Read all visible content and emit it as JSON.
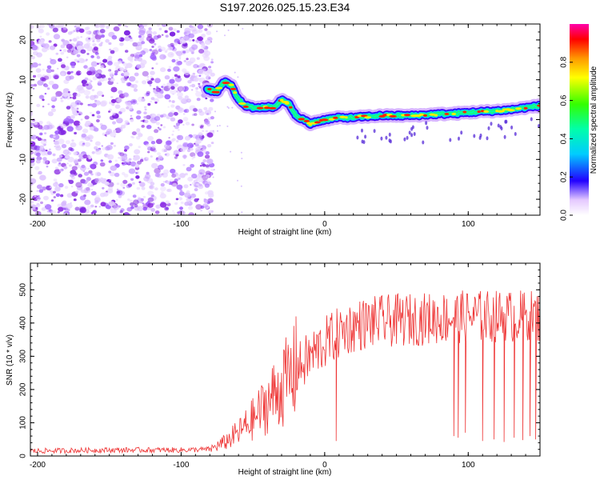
{
  "title": "S197.2026.025.15.23.E34",
  "colors": {
    "snr_line": "#ee3333",
    "scatter": "#8a2be2",
    "frame": "#000000"
  },
  "chart_data": [
    {
      "type": "heatmap",
      "name": "spectrogram",
      "xlabel": "Height of straight line (km)",
      "ylabel": "Frequency (Hz)",
      "xlim": [
        -205,
        150
      ],
      "ylim": [
        -24,
        24
      ],
      "xticks": [
        -200,
        -100,
        0,
        100
      ],
      "xtick_labels": [
        "-200",
        "-100",
        "0",
        "100"
      ],
      "yticks": [
        -20,
        -10,
        0,
        10,
        20
      ],
      "ytick_labels": [
        "-20",
        "-10",
        "0",
        "10",
        "20"
      ],
      "noise_region_x": [
        -205,
        -78
      ],
      "ridge": {
        "x": [
          -82,
          -75,
          -70,
          -65,
          -60,
          -55,
          -50,
          -45,
          -40,
          -35,
          -30,
          -25,
          -20,
          -15,
          -10,
          -5,
          0,
          10,
          20,
          30,
          40,
          50,
          60,
          70,
          80,
          90,
          100,
          110,
          120,
          130,
          140,
          150
        ],
        "y": [
          7.5,
          7,
          9.5,
          8.5,
          5,
          3.5,
          3,
          3,
          3.2,
          3,
          5,
          4,
          1,
          0,
          -1,
          -0.5,
          0,
          0.5,
          0.5,
          0.8,
          1,
          1,
          1,
          1.2,
          1.4,
          1.5,
          1.8,
          2,
          2.2,
          2.5,
          3,
          3.5
        ]
      },
      "colorbar": {
        "label": "Normalized spectral amplitude",
        "range": [
          0,
          1
        ],
        "ticks": [
          0.0,
          0.2,
          0.4,
          0.6,
          0.8
        ],
        "tick_labels": [
          "0.0",
          "0.2",
          "0.4",
          "0.6",
          "0.8"
        ]
      }
    },
    {
      "type": "line",
      "name": "snr",
      "xlabel": "Height of straight line (km)",
      "ylabel": "SNR (10 * v/v)",
      "xlim": [
        -205,
        150
      ],
      "ylim": [
        0,
        580
      ],
      "xticks": [
        -200,
        -100,
        0,
        100
      ],
      "xtick_labels": [
        "-200",
        "-100",
        "0",
        "100"
      ],
      "yticks": [
        0,
        100,
        200,
        300,
        400,
        500
      ],
      "ytick_labels": [
        "0",
        "100",
        "200",
        "300",
        "400",
        "500"
      ],
      "trend": {
        "x": [
          -205,
          -150,
          -100,
          -80,
          -70,
          -60,
          -50,
          -40,
          -30,
          -20,
          -10,
          0,
          10,
          20,
          30,
          40,
          60,
          80,
          100,
          120,
          140,
          150
        ],
        "y": [
          15,
          18,
          18,
          20,
          40,
          70,
          110,
          160,
          210,
          255,
          300,
          340,
          370,
          390,
          400,
          405,
          410,
          415,
          420,
          420,
          420,
          420
        ]
      },
      "spikes": [
        {
          "x": -20,
          "y": 420
        },
        {
          "x": 8,
          "y": 45
        },
        {
          "x": 90,
          "y": 60
        },
        {
          "x": 93,
          "y": 55
        },
        {
          "x": 98,
          "y": 70
        },
        {
          "x": 110,
          "y": 45
        },
        {
          "x": 118,
          "y": 50
        },
        {
          "x": 125,
          "y": 42
        },
        {
          "x": 132,
          "y": 55
        },
        {
          "x": 138,
          "y": 48
        },
        {
          "x": 143,
          "y": 60
        },
        {
          "x": 147,
          "y": 50
        }
      ]
    }
  ]
}
